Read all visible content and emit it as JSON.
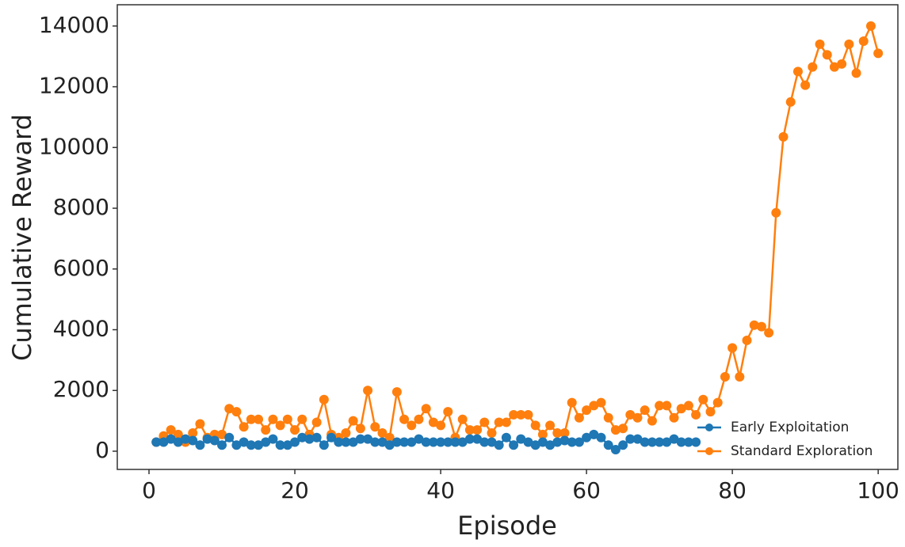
{
  "chart_data": {
    "type": "line",
    "xlabel": "Episode",
    "ylabel": "Cumulative Reward",
    "x": [
      1,
      2,
      3,
      4,
      5,
      6,
      7,
      8,
      9,
      10,
      11,
      12,
      13,
      14,
      15,
      16,
      17,
      18,
      19,
      20,
      21,
      22,
      23,
      24,
      25,
      26,
      27,
      28,
      29,
      30,
      31,
      32,
      33,
      34,
      35,
      36,
      37,
      38,
      39,
      40,
      41,
      42,
      43,
      44,
      45,
      46,
      47,
      48,
      49,
      50,
      51,
      52,
      53,
      54,
      55,
      56,
      57,
      58,
      59,
      60,
      61,
      62,
      63,
      64,
      65,
      66,
      67,
      68,
      69,
      70,
      71,
      72,
      73,
      74,
      75,
      76,
      77,
      78,
      79,
      80,
      81,
      82,
      83,
      84,
      85,
      86,
      87,
      88,
      89,
      90,
      91,
      92,
      93,
      94,
      95,
      96,
      97,
      98,
      99,
      100
    ],
    "series": [
      {
        "name": "Standard Exploration",
        "color": "#ff7f0e",
        "values": [
          300,
          500,
          700,
          550,
          300,
          600,
          900,
          450,
          550,
          550,
          1400,
          1300,
          800,
          1050,
          1050,
          700,
          1050,
          850,
          1050,
          700,
          1050,
          550,
          950,
          1700,
          550,
          450,
          600,
          1000,
          750,
          2000,
          800,
          600,
          450,
          1950,
          1050,
          850,
          1050,
          1400,
          950,
          850,
          1300,
          450,
          1050,
          700,
          700,
          950,
          600,
          950,
          950,
          1200,
          1200,
          1200,
          850,
          550,
          850,
          600,
          600,
          1600,
          1100,
          1350,
          1500,
          1600,
          1100,
          700,
          750,
          1200,
          1100,
          1350,
          1000,
          1500,
          1500,
          1100,
          1400,
          1500,
          1200,
          1700,
          1300,
          1600,
          2450,
          3400,
          2450,
          3650,
          4150,
          4100,
          3900,
          7850,
          10350,
          11500,
          12500,
          12050,
          12650,
          13400,
          13050,
          12650,
          12750,
          13400,
          12450,
          13500,
          14000,
          13100
        ]
      },
      {
        "name": "Early Exploitation",
        "color": "#1f77b4",
        "values": [
          300,
          300,
          400,
          300,
          400,
          350,
          200,
          400,
          350,
          200,
          450,
          200,
          300,
          200,
          200,
          300,
          400,
          200,
          200,
          300,
          450,
          400,
          450,
          200,
          450,
          300,
          300,
          300,
          400,
          400,
          300,
          300,
          200,
          300,
          300,
          300,
          400,
          300,
          300,
          300,
          300,
          300,
          300,
          400,
          400,
          300,
          300,
          200,
          450,
          200,
          400,
          300,
          200,
          300,
          200,
          300,
          350,
          300,
          300,
          450,
          550,
          450,
          200,
          50,
          200,
          400,
          400,
          300,
          300,
          300,
          300,
          400,
          300,
          300,
          300,
          null,
          null,
          null,
          null,
          null,
          null,
          null,
          null,
          null,
          null,
          null,
          null,
          null,
          null,
          null,
          null,
          null,
          null,
          null,
          null,
          null,
          null,
          null,
          null,
          null
        ]
      }
    ],
    "xlim": [
      -4.35,
      102.7
    ],
    "ylim": [
      -600,
      14700
    ],
    "xticks": [
      0,
      20,
      40,
      60,
      80,
      100
    ],
    "yticks": [
      0,
      2000,
      4000,
      6000,
      8000,
      10000,
      12000,
      14000
    ],
    "grid": false,
    "legend": "lower right"
  }
}
